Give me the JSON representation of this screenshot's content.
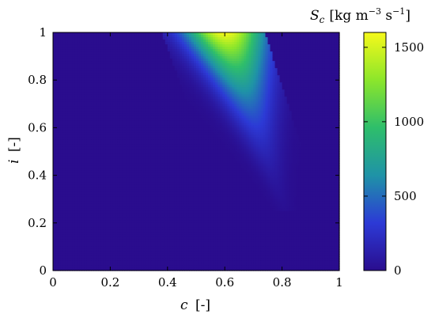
{
  "chart_data": {
    "type": "heatmap",
    "xlabel_var": "c",
    "xlabel_unit": "[-]",
    "ylabel_var": "i",
    "ylabel_unit": "[-]",
    "xlim": [
      0,
      1
    ],
    "ylim": [
      0,
      1
    ],
    "xticks": [
      0,
      0.2,
      0.4,
      0.6,
      0.8,
      1
    ],
    "xtick_labels": [
      "0",
      "0.2",
      "0.4",
      "0.6",
      "0.8",
      "1"
    ],
    "yticks": [
      0,
      0.2,
      0.4,
      0.6,
      0.8,
      1
    ],
    "ytick_labels": [
      "0",
      "0.2",
      "0.4",
      "0.6",
      "0.8",
      "1"
    ],
    "colorbar": {
      "title_var": "S",
      "title_sub": "c",
      "title_unit": "[kg m",
      "title_exp1": "−3",
      "title_mid": " s",
      "title_exp2": "−1",
      "title_end": "]",
      "range": [
        0,
        1600
      ],
      "ticks": [
        0,
        500,
        1000,
        1500
      ],
      "tick_labels": [
        "0",
        "500",
        "1000",
        "1500"
      ],
      "colormap": [
        "#2a0d8e",
        "#2c3ad6",
        "#1f93a7",
        "#2ebe6b",
        "#8ce62b",
        "#f6f91a"
      ]
    },
    "field": {
      "description_peak_c": 0.6,
      "peak_value": 1600,
      "nonzero_region": "between lines c = 0.4 + 0.35*(1-i)·… (wedge from c≈0.45–0.7 at i=1 to c≈0.85 at i≈0.3)"
    }
  }
}
